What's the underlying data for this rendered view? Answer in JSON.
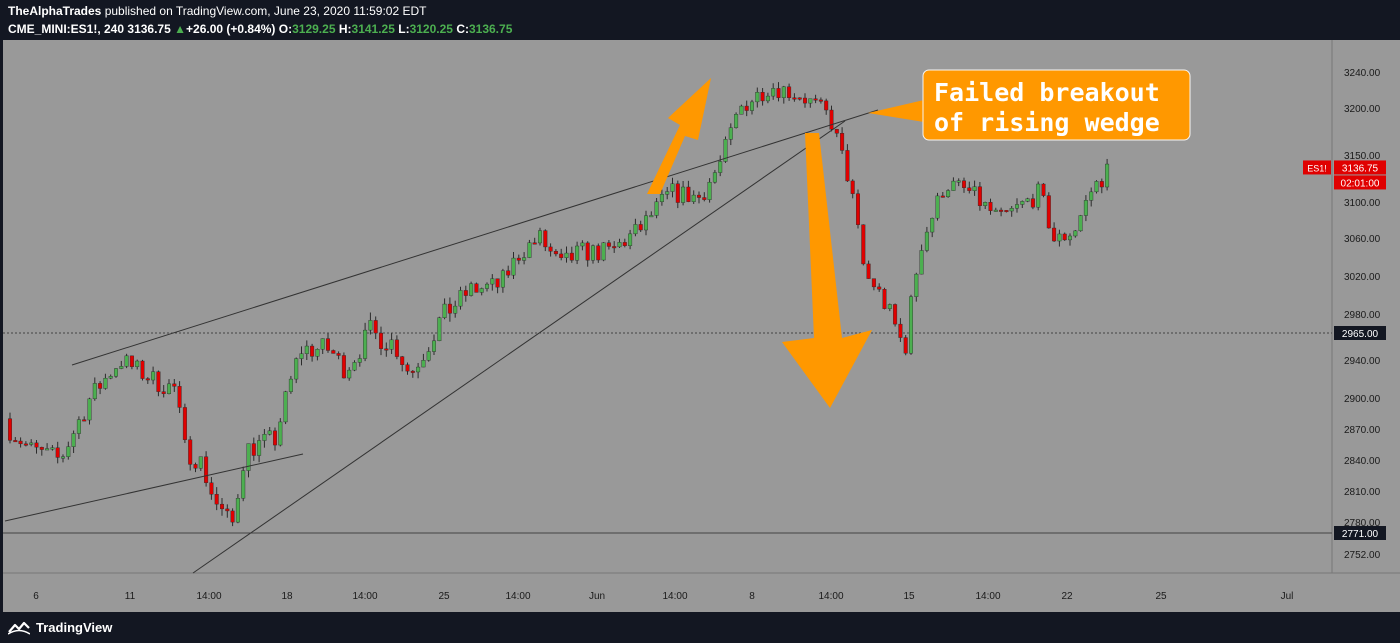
{
  "header": {
    "author": "TheAlphaTrades",
    "published_text": "published on TradingView.com, June 23, 2020 11:59:02 EDT",
    "symbol": "CME_MINI:ES1!, 240",
    "last": "3136.75",
    "change": "+26.00 (+0.84%)",
    "o_label": "O:",
    "o": "3129.25",
    "h_label": "H:",
    "h": "3141.25",
    "l_label": "L:",
    "l": "3120.25",
    "c_label": "C:",
    "c": "3136.75"
  },
  "footer": {
    "brand": "TradingView"
  },
  "colors": {
    "plot_bg": "#999999",
    "up": "#4caf50",
    "down": "#e00000",
    "arrow": "#ff9800",
    "outer": "#131722",
    "price_tag": "#e00000",
    "dark_tag": "#131722"
  },
  "chart_data": {
    "type": "candlestick",
    "ylim": [
      2730,
      3260
    ],
    "y_ticks": [
      "3240.00",
      "3200.00",
      "3150.00",
      "3100.00",
      "3060.00",
      "3020.00",
      "2980.00",
      "2940.00",
      "2900.00",
      "2870.00",
      "2840.00",
      "2810.00",
      "2780.00",
      "2752.00"
    ],
    "x_ticks": [
      "6",
      "11",
      "14:00",
      "18",
      "14:00",
      "25",
      "14:00",
      "Jun",
      "14:00",
      "8",
      "14:00",
      "15",
      "14:00",
      "22",
      "25",
      "Jul"
    ],
    "price_tags": [
      {
        "symbol": "ES1!",
        "value": "3136.75"
      },
      {
        "value": "02:01:00"
      },
      {
        "value": "2965.00"
      },
      {
        "value": "2771.00"
      }
    ],
    "horizontal_levels": [
      2965.0,
      2771.0
    ],
    "annotation": {
      "lines": [
        "Failed breakout",
        "of rising wedge"
      ]
    },
    "anchors": [
      {
        "x": 0,
        "y": 2880
      },
      {
        "x": 30,
        "y": 2850
      },
      {
        "x": 60,
        "y": 2840
      },
      {
        "x": 90,
        "y": 2900
      },
      {
        "x": 120,
        "y": 2940
      },
      {
        "x": 160,
        "y": 2915
      },
      {
        "x": 175,
        "y": 2910
      },
      {
        "x": 185,
        "y": 2850
      },
      {
        "x": 200,
        "y": 2840
      },
      {
        "x": 215,
        "y": 2800
      },
      {
        "x": 232,
        "y": 2775
      },
      {
        "x": 245,
        "y": 2850
      },
      {
        "x": 275,
        "y": 2860
      },
      {
        "x": 300,
        "y": 2950
      },
      {
        "x": 330,
        "y": 2950
      },
      {
        "x": 345,
        "y": 2930
      },
      {
        "x": 370,
        "y": 2965
      },
      {
        "x": 395,
        "y": 2955
      },
      {
        "x": 410,
        "y": 2925
      },
      {
        "x": 440,
        "y": 2975
      },
      {
        "x": 470,
        "y": 3005
      },
      {
        "x": 500,
        "y": 3010
      },
      {
        "x": 520,
        "y": 3045
      },
      {
        "x": 540,
        "y": 3060
      },
      {
        "x": 560,
        "y": 3030
      },
      {
        "x": 580,
        "y": 3045
      },
      {
        "x": 610,
        "y": 3045
      },
      {
        "x": 640,
        "y": 3070
      },
      {
        "x": 670,
        "y": 3110
      },
      {
        "x": 700,
        "y": 3105
      },
      {
        "x": 720,
        "y": 3140
      },
      {
        "x": 740,
        "y": 3200
      },
      {
        "x": 770,
        "y": 3225
      },
      {
        "x": 800,
        "y": 3215
      },
      {
        "x": 830,
        "y": 3190
      },
      {
        "x": 850,
        "y": 3120
      },
      {
        "x": 865,
        "y": 3020
      },
      {
        "x": 875,
        "y": 3010
      },
      {
        "x": 890,
        "y": 2980
      },
      {
        "x": 905,
        "y": 2950
      },
      {
        "x": 920,
        "y": 3050
      },
      {
        "x": 945,
        "y": 3120
      },
      {
        "x": 970,
        "y": 3110
      },
      {
        "x": 1000,
        "y": 3080
      },
      {
        "x": 1040,
        "y": 3110
      },
      {
        "x": 1055,
        "y": 3055
      },
      {
        "x": 1075,
        "y": 3070
      },
      {
        "x": 1090,
        "y": 3110
      },
      {
        "x": 1110,
        "y": 3136.75
      }
    ]
  }
}
